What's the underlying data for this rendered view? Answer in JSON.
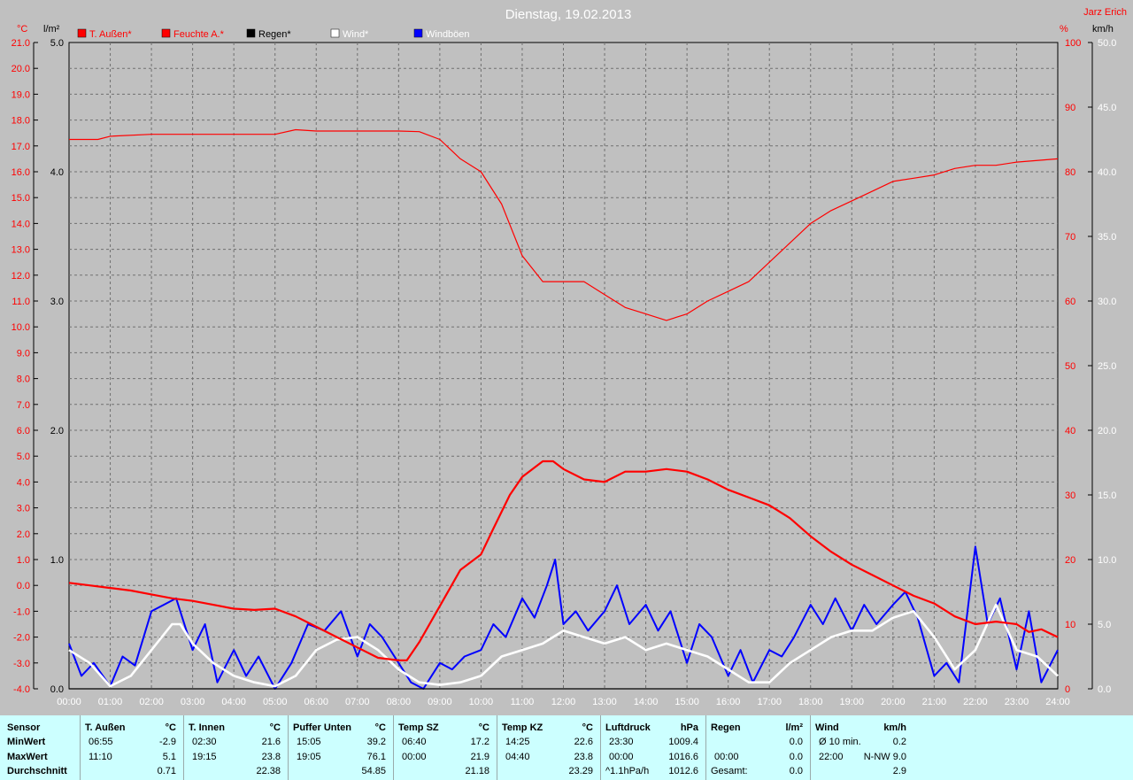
{
  "header": {
    "title": "Dienstag, 19.02.2013",
    "author": "Jarz Erich"
  },
  "axes": {
    "left_temp_unit": "°C",
    "left_rain_unit": "l/m²",
    "right_pct_unit": "%",
    "right_wind_unit": "km/h"
  },
  "legend": [
    {
      "label": "T. Außen*",
      "color": "#ff0000",
      "text_color": "#ff0000"
    },
    {
      "label": "Feuchte A.*",
      "color": "#ff0000",
      "text_color": "#ff0000"
    },
    {
      "label": "Regen*",
      "color": "#000000",
      "text_color": "#000000"
    },
    {
      "label": "Wind*",
      "color": "#ffffff",
      "text_color": "#ffffff"
    },
    {
      "label": "Windböen",
      "color": "#0000ff",
      "text_color": "#ffffff"
    }
  ],
  "chart_data": {
    "type": "line",
    "title": "Dienstag, 19.02.2013",
    "x_ticks": [
      "00:00",
      "01:00",
      "02:00",
      "03:00",
      "04:00",
      "05:00",
      "06:00",
      "07:00",
      "08:00",
      "09:00",
      "10:00",
      "11:00",
      "12:00",
      "13:00",
      "14:00",
      "15:00",
      "16:00",
      "17:00",
      "18:00",
      "19:00",
      "20:00",
      "21:00",
      "22:00",
      "23:00",
      "24:00"
    ],
    "x_range_hours": [
      0,
      24
    ],
    "temp_axis": {
      "label": "°C",
      "range": [
        -4.0,
        21.0
      ],
      "ticks": [
        "-4.0",
        "-3.0",
        "-2.0",
        "-1.0",
        "0.0",
        "1.0",
        "2.0",
        "3.0",
        "4.0",
        "5.0",
        "6.0",
        "7.0",
        "8.0",
        "9.0",
        "10.0",
        "11.0",
        "12.0",
        "13.0",
        "14.0",
        "15.0",
        "16.0",
        "17.0",
        "18.0",
        "19.0",
        "20.0",
        "21.0"
      ]
    },
    "rain_axis": {
      "label": "l/m²",
      "range": [
        0.0,
        5.0
      ],
      "ticks": [
        "0.0",
        "1.0",
        "2.0",
        "3.0",
        "4.0",
        "5.0"
      ]
    },
    "humidity_axis": {
      "label": "%",
      "range": [
        0,
        100
      ],
      "ticks": [
        "0",
        "10",
        "20",
        "30",
        "40",
        "50",
        "60",
        "70",
        "80",
        "90",
        "100"
      ]
    },
    "wind_axis": {
      "label": "km/h",
      "range": [
        0.0,
        50.0
      ],
      "ticks": [
        "0.0",
        "5.0",
        "10.0",
        "15.0",
        "20.0",
        "25.0",
        "30.0",
        "35.0",
        "40.0",
        "45.0",
        "50.0"
      ]
    },
    "grid": true,
    "series": [
      {
        "name": "T. Außen*",
        "axis": "temp",
        "color": "#ff0000",
        "points": [
          [
            0,
            0.1
          ],
          [
            0.5,
            0.0
          ],
          [
            1,
            -0.1
          ],
          [
            1.5,
            -0.2
          ],
          [
            2,
            -0.35
          ],
          [
            2.5,
            -0.5
          ],
          [
            3,
            -0.6
          ],
          [
            3.5,
            -0.75
          ],
          [
            4,
            -0.9
          ],
          [
            4.5,
            -0.95
          ],
          [
            5,
            -0.9
          ],
          [
            5.5,
            -1.2
          ],
          [
            6,
            -1.6
          ],
          [
            6.5,
            -2.0
          ],
          [
            7,
            -2.4
          ],
          [
            7.5,
            -2.8
          ],
          [
            8,
            -2.9
          ],
          [
            8.2,
            -2.9
          ],
          [
            8.5,
            -2.2
          ],
          [
            9,
            -0.8
          ],
          [
            9.5,
            0.6
          ],
          [
            10,
            1.2
          ],
          [
            10.3,
            2.2
          ],
          [
            10.7,
            3.5
          ],
          [
            11,
            4.2
          ],
          [
            11.5,
            4.8
          ],
          [
            11.75,
            4.8
          ],
          [
            12,
            4.5
          ],
          [
            12.5,
            4.1
          ],
          [
            13,
            4.0
          ],
          [
            13.5,
            4.4
          ],
          [
            14,
            4.4
          ],
          [
            14.5,
            4.5
          ],
          [
            15,
            4.4
          ],
          [
            15.5,
            4.1
          ],
          [
            16,
            3.7
          ],
          [
            16.5,
            3.4
          ],
          [
            17,
            3.1
          ],
          [
            17.5,
            2.6
          ],
          [
            18,
            1.9
          ],
          [
            18.5,
            1.3
          ],
          [
            19,
            0.8
          ],
          [
            19.5,
            0.4
          ],
          [
            20,
            0.0
          ],
          [
            20.5,
            -0.4
          ],
          [
            21,
            -0.7
          ],
          [
            21.5,
            -1.2
          ],
          [
            22,
            -1.5
          ],
          [
            22.5,
            -1.4
          ],
          [
            23,
            -1.5
          ],
          [
            23.3,
            -1.8
          ],
          [
            23.6,
            -1.7
          ],
          [
            24,
            -2.0
          ]
        ]
      },
      {
        "name": "Feuchte A.*",
        "axis": "humidity",
        "color": "#ff0000",
        "points": [
          [
            0,
            85
          ],
          [
            0.7,
            85
          ],
          [
            1,
            85.5
          ],
          [
            2,
            85.8
          ],
          [
            3,
            85.8
          ],
          [
            4,
            85.8
          ],
          [
            5,
            85.8
          ],
          [
            5.5,
            86.5
          ],
          [
            6,
            86.3
          ],
          [
            7,
            86.3
          ],
          [
            8,
            86.3
          ],
          [
            8.5,
            86.2
          ],
          [
            9,
            85
          ],
          [
            9.5,
            82
          ],
          [
            10,
            80
          ],
          [
            10.5,
            75
          ],
          [
            11,
            67
          ],
          [
            11.5,
            63
          ],
          [
            12,
            63
          ],
          [
            12.5,
            63
          ],
          [
            13,
            61
          ],
          [
            13.5,
            59
          ],
          [
            14,
            58
          ],
          [
            14.5,
            57
          ],
          [
            15,
            58
          ],
          [
            15.5,
            60
          ],
          [
            16,
            61.5
          ],
          [
            16.5,
            63
          ],
          [
            17,
            66
          ],
          [
            17.5,
            69
          ],
          [
            18,
            72
          ],
          [
            18.5,
            74
          ],
          [
            19,
            75.5
          ],
          [
            19.5,
            77
          ],
          [
            20,
            78.5
          ],
          [
            20.5,
            79
          ],
          [
            21,
            79.5
          ],
          [
            21.5,
            80.5
          ],
          [
            22,
            81
          ],
          [
            22.5,
            81
          ],
          [
            23,
            81.5
          ],
          [
            24,
            82
          ]
        ]
      },
      {
        "name": "Regen*",
        "axis": "rain",
        "color": "#000000",
        "points": [
          [
            0,
            0.0
          ],
          [
            24,
            0.0
          ]
        ]
      },
      {
        "name": "Wind*",
        "axis": "wind",
        "color": "#ffffff",
        "points": [
          [
            0,
            3.0
          ],
          [
            0.5,
            2.0
          ],
          [
            1,
            0.2
          ],
          [
            1.5,
            1.0
          ],
          [
            2,
            3.0
          ],
          [
            2.5,
            5.0
          ],
          [
            2.7,
            5.0
          ],
          [
            3,
            3.5
          ],
          [
            3.5,
            2.0
          ],
          [
            4,
            1.0
          ],
          [
            4.5,
            0.5
          ],
          [
            5,
            0.2
          ],
          [
            5.5,
            1.0
          ],
          [
            6,
            3.0
          ],
          [
            6.5,
            3.8
          ],
          [
            7,
            4.0
          ],
          [
            7.5,
            3.0
          ],
          [
            8,
            1.5
          ],
          [
            8.5,
            0.5
          ],
          [
            9,
            0.3
          ],
          [
            9.5,
            0.5
          ],
          [
            10,
            1.0
          ],
          [
            10.5,
            2.5
          ],
          [
            11,
            3.0
          ],
          [
            11.5,
            3.5
          ],
          [
            12,
            4.5
          ],
          [
            12.5,
            4.0
          ],
          [
            13,
            3.5
          ],
          [
            13.5,
            4.0
          ],
          [
            14,
            3.0
          ],
          [
            14.5,
            3.5
          ],
          [
            15,
            3.0
          ],
          [
            15.5,
            2.5
          ],
          [
            16,
            1.5
          ],
          [
            16.5,
            0.5
          ],
          [
            17,
            0.5
          ],
          [
            17.5,
            2.0
          ],
          [
            18,
            3.0
          ],
          [
            18.5,
            4.0
          ],
          [
            19,
            4.5
          ],
          [
            19.5,
            4.5
          ],
          [
            20,
            5.5
          ],
          [
            20.5,
            6.0
          ],
          [
            21,
            4.0
          ],
          [
            21.5,
            1.5
          ],
          [
            22,
            3.0
          ],
          [
            22.5,
            6.5
          ],
          [
            23,
            3.0
          ],
          [
            23.5,
            2.5
          ],
          [
            24,
            1.0
          ]
        ]
      },
      {
        "name": "Windböen",
        "axis": "wind",
        "color": "#0000ff",
        "points": [
          [
            0,
            3.5
          ],
          [
            0.3,
            1.0
          ],
          [
            0.6,
            2.0
          ],
          [
            1,
            0.2
          ],
          [
            1.3,
            2.5
          ],
          [
            1.6,
            1.8
          ],
          [
            2,
            6.0
          ],
          [
            2.3,
            6.5
          ],
          [
            2.6,
            7.0
          ],
          [
            3,
            3.0
          ],
          [
            3.3,
            5.0
          ],
          [
            3.6,
            0.5
          ],
          [
            4,
            3.0
          ],
          [
            4.3,
            1.0
          ],
          [
            4.6,
            2.5
          ],
          [
            5,
            0.0
          ],
          [
            5.4,
            2.0
          ],
          [
            5.8,
            5.0
          ],
          [
            6.2,
            4.5
          ],
          [
            6.6,
            6.0
          ],
          [
            7,
            2.5
          ],
          [
            7.3,
            5.0
          ],
          [
            7.6,
            4.0
          ],
          [
            8,
            2.0
          ],
          [
            8.3,
            0.5
          ],
          [
            8.6,
            0.0
          ],
          [
            9,
            2.0
          ],
          [
            9.3,
            1.5
          ],
          [
            9.6,
            2.5
          ],
          [
            10,
            3.0
          ],
          [
            10.3,
            5.0
          ],
          [
            10.6,
            4.0
          ],
          [
            11,
            7.0
          ],
          [
            11.3,
            5.5
          ],
          [
            11.6,
            8.0
          ],
          [
            11.8,
            10.0
          ],
          [
            12,
            5.0
          ],
          [
            12.3,
            6.0
          ],
          [
            12.6,
            4.5
          ],
          [
            13,
            6.0
          ],
          [
            13.3,
            8.0
          ],
          [
            13.6,
            5.0
          ],
          [
            14,
            6.5
          ],
          [
            14.3,
            4.5
          ],
          [
            14.6,
            6.0
          ],
          [
            15,
            2.0
          ],
          [
            15.3,
            5.0
          ],
          [
            15.6,
            4.0
          ],
          [
            16,
            1.0
          ],
          [
            16.3,
            3.0
          ],
          [
            16.6,
            0.5
          ],
          [
            17,
            3.0
          ],
          [
            17.3,
            2.5
          ],
          [
            17.6,
            4.0
          ],
          [
            18,
            6.5
          ],
          [
            18.3,
            5.0
          ],
          [
            18.6,
            7.0
          ],
          [
            19,
            4.5
          ],
          [
            19.3,
            6.5
          ],
          [
            19.6,
            5.0
          ],
          [
            20,
            6.5
          ],
          [
            20.3,
            7.5
          ],
          [
            20.6,
            5.5
          ],
          [
            21,
            1.0
          ],
          [
            21.3,
            2.0
          ],
          [
            21.6,
            0.5
          ],
          [
            22,
            11.0
          ],
          [
            22.3,
            5.0
          ],
          [
            22.6,
            7.0
          ],
          [
            23,
            1.5
          ],
          [
            23.3,
            6.0
          ],
          [
            23.6,
            0.5
          ],
          [
            24,
            3.0
          ]
        ]
      }
    ]
  },
  "stats": {
    "sensor_col": {
      "title": "Sensor",
      "rows": [
        "MinWert",
        "MaxWert",
        "Durchschnitt"
      ]
    },
    "columns": [
      {
        "name": "T. Außen",
        "unit": "°C",
        "min_time": "06:55",
        "min_val": "-2.9",
        "max_time": "11:10",
        "max_val": "5.1",
        "avg": "0.71"
      },
      {
        "name": "T. Innen",
        "unit": "°C",
        "min_time": "02:30",
        "min_val": "21.6",
        "max_time": "19:15",
        "max_val": "23.8",
        "avg": "22.38"
      },
      {
        "name": "Puffer Unten",
        "unit": "°C",
        "min_time": "15:05",
        "min_val": "39.2",
        "max_time": "19:05",
        "max_val": "76.1",
        "avg": "54.85"
      },
      {
        "name": "Temp SZ",
        "unit": "°C",
        "min_time": "06:40",
        "min_val": "17.2",
        "max_time": "00:00",
        "max_val": "21.9",
        "avg": "21.18"
      },
      {
        "name": "Temp KZ",
        "unit": "°C",
        "min_time": "14:25",
        "min_val": "22.6",
        "max_time": "04:40",
        "max_val": "23.8",
        "avg": "23.29"
      },
      {
        "name": "Luftdruck",
        "unit": "hPa",
        "min_time": "23:30",
        "min_val": "1009.4",
        "max_time": "00:00",
        "max_val": "1016.6",
        "avg_label": "^1.1hPa/h",
        "avg": "1012.6"
      },
      {
        "name": "Regen",
        "unit": "l/m²",
        "min_time": "",
        "min_val": "0.0",
        "max_time": "00:00",
        "max_val": "0.0",
        "avg_label": "Gesamt:",
        "avg": "0.0"
      },
      {
        "name": "Wind",
        "unit": "km/h",
        "min_time": "Ø 10 min.",
        "min_val": "0.2",
        "max_time": "22:00",
        "max_val": "N-NW 9.0",
        "avg": "2.9"
      }
    ]
  }
}
